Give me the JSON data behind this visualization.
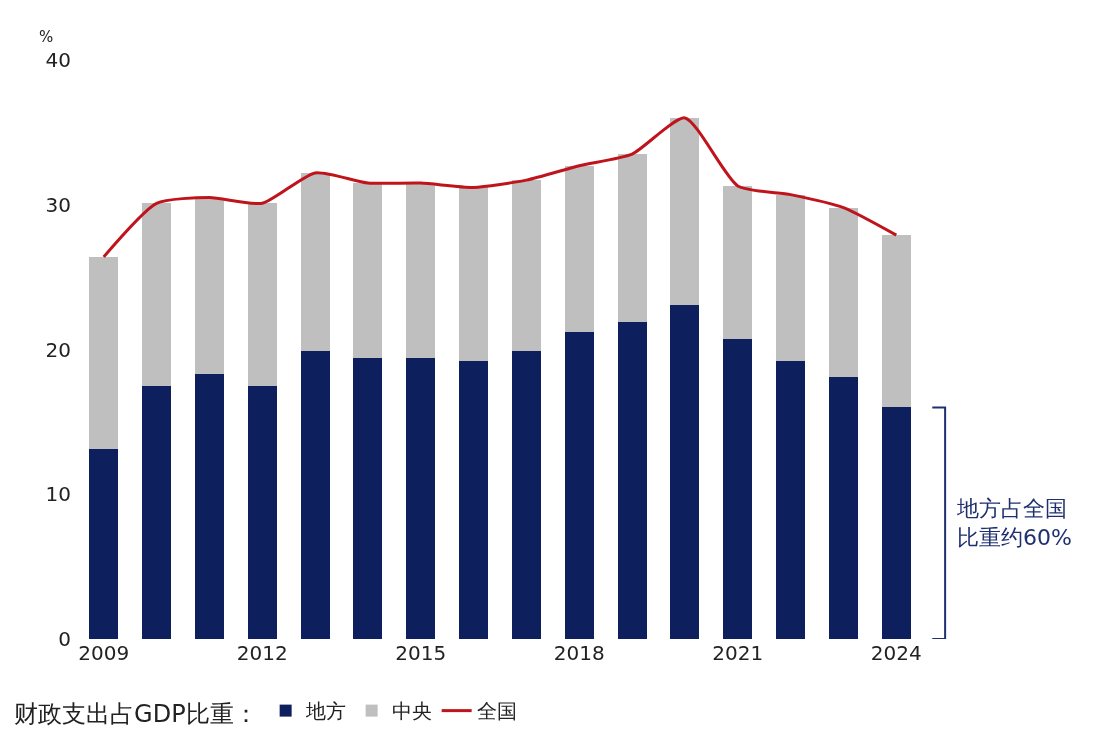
{
  "chart_data": {
    "type": "bar",
    "stacked": true,
    "ylabel": "%",
    "legend_title": "财政支出占GDP比重：",
    "categories": [
      "2009",
      null,
      null,
      "2012",
      null,
      null,
      "2015",
      null,
      null,
      "2018",
      null,
      null,
      "2021",
      null,
      null,
      "2024"
    ],
    "series": [
      {
        "name": "地方",
        "color": "#0d1f5c",
        "values": [
          13.1,
          17.5,
          18.3,
          17.5,
          19.9,
          19.4,
          19.4,
          19.2,
          19.9,
          21.2,
          21.9,
          23.1,
          20.7,
          19.2,
          18.1,
          16.0
        ]
      },
      {
        "name": "中央",
        "color": "#bfbfbf",
        "values": [
          13.3,
          12.6,
          12.2,
          12.6,
          12.3,
          12.1,
          12.1,
          12.0,
          11.8,
          11.5,
          11.6,
          12.9,
          10.6,
          11.5,
          11.7,
          11.9
        ]
      },
      {
        "name": "全国",
        "type": "line",
        "color": "#c0141c",
        "values": [
          26.4,
          30.1,
          30.5,
          30.1,
          32.2,
          31.5,
          31.5,
          31.2,
          31.7,
          32.7,
          33.5,
          36.0,
          31.3,
          30.7,
          29.8,
          27.9
        ]
      }
    ],
    "ylim": [
      0,
      40
    ],
    "yticks": [
      0,
      10,
      20,
      30,
      40
    ],
    "legend": "bottom",
    "marker": "none",
    "line_style": "solid",
    "annotations": [
      "地方占全国比重约60%"
    ]
  }
}
